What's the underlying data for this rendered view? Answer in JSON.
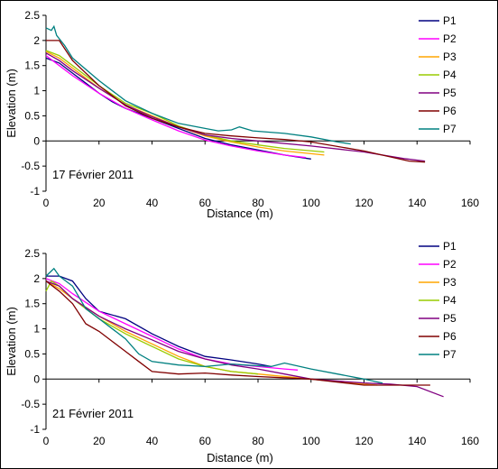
{
  "chart_data": [
    {
      "type": "line",
      "annotation": "17 Février 2011",
      "xlabel": "Distance (m)",
      "ylabel": "Elevation (m)",
      "xlim": [
        0,
        160
      ],
      "ylim": [
        -1,
        2.5
      ],
      "xticks": [
        "0",
        "20",
        "40",
        "60",
        "80",
        "100",
        "120",
        "140",
        "160"
      ],
      "yticks": [
        "2.5",
        "2",
        "1.5",
        "1",
        "0.5",
        "0",
        "-0.5",
        "-1"
      ],
      "legend_position": "right",
      "series": [
        {
          "name": "P1",
          "color": "#000080",
          "points": [
            [
              0,
              1.65
            ],
            [
              5,
              1.55
            ],
            [
              10,
              1.35
            ],
            [
              15,
              1.15
            ],
            [
              20,
              0.95
            ],
            [
              25,
              0.78
            ],
            [
              30,
              0.65
            ],
            [
              40,
              0.45
            ],
            [
              50,
              0.25
            ],
            [
              60,
              0.05
            ],
            [
              70,
              -0.08
            ],
            [
              80,
              -0.18
            ],
            [
              90,
              -0.28
            ],
            [
              100,
              -0.36
            ]
          ]
        },
        {
          "name": "P2",
          "color": "#ff00ff",
          "points": [
            [
              0,
              1.7
            ],
            [
              5,
              1.5
            ],
            [
              10,
              1.3
            ],
            [
              20,
              0.95
            ],
            [
              30,
              0.65
            ],
            [
              40,
              0.42
            ],
            [
              50,
              0.2
            ],
            [
              60,
              0.02
            ],
            [
              70,
              -0.1
            ],
            [
              80,
              -0.2
            ],
            [
              90,
              -0.28
            ],
            [
              98,
              -0.33
            ]
          ]
        },
        {
          "name": "P3",
          "color": "#ffa500",
          "points": [
            [
              0,
              1.78
            ],
            [
              5,
              1.65
            ],
            [
              10,
              1.45
            ],
            [
              20,
              1.05
            ],
            [
              30,
              0.72
            ],
            [
              40,
              0.5
            ],
            [
              50,
              0.28
            ],
            [
              60,
              0.1
            ],
            [
              70,
              -0.02
            ],
            [
              80,
              -0.12
            ],
            [
              90,
              -0.2
            ],
            [
              105,
              -0.28
            ]
          ]
        },
        {
          "name": "P4",
          "color": "#99cc00",
          "points": [
            [
              0,
              1.8
            ],
            [
              5,
              1.7
            ],
            [
              10,
              1.5
            ],
            [
              20,
              1.1
            ],
            [
              30,
              0.75
            ],
            [
              40,
              0.55
            ],
            [
              50,
              0.3
            ],
            [
              60,
              0.12
            ],
            [
              70,
              0.0
            ],
            [
              80,
              -0.08
            ],
            [
              90,
              -0.15
            ],
            [
              105,
              -0.22
            ]
          ]
        },
        {
          "name": "P5",
          "color": "#800080",
          "points": [
            [
              0,
              1.75
            ],
            [
              5,
              1.6
            ],
            [
              10,
              1.4
            ],
            [
              20,
              1.05
            ],
            [
              30,
              0.72
            ],
            [
              40,
              0.48
            ],
            [
              50,
              0.28
            ],
            [
              60,
              0.12
            ],
            [
              70,
              0.05
            ],
            [
              80,
              0.0
            ],
            [
              100,
              -0.1
            ],
            [
              120,
              -0.22
            ],
            [
              135,
              -0.35
            ],
            [
              143,
              -0.4
            ]
          ]
        },
        {
          "name": "P6",
          "color": "#800000",
          "points": [
            [
              0,
              2.0
            ],
            [
              5,
              2.0
            ],
            [
              10,
              1.6
            ],
            [
              20,
              1.1
            ],
            [
              30,
              0.7
            ],
            [
              40,
              0.45
            ],
            [
              50,
              0.28
            ],
            [
              60,
              0.15
            ],
            [
              70,
              0.1
            ],
            [
              80,
              0.06
            ],
            [
              90,
              0.03
            ],
            [
              100,
              -0.02
            ],
            [
              120,
              -0.2
            ],
            [
              137,
              -0.4
            ],
            [
              143,
              -0.42
            ]
          ]
        },
        {
          "name": "P7",
          "color": "#008080",
          "points": [
            [
              0,
              2.25
            ],
            [
              2,
              2.2
            ],
            [
              3,
              2.28
            ],
            [
              4,
              2.1
            ],
            [
              7,
              1.9
            ],
            [
              10,
              1.65
            ],
            [
              20,
              1.2
            ],
            [
              30,
              0.8
            ],
            [
              40,
              0.55
            ],
            [
              50,
              0.35
            ],
            [
              60,
              0.25
            ],
            [
              65,
              0.2
            ],
            [
              70,
              0.22
            ],
            [
              73,
              0.28
            ],
            [
              78,
              0.2
            ],
            [
              90,
              0.15
            ],
            [
              100,
              0.08
            ],
            [
              110,
              -0.02
            ],
            [
              115,
              -0.06
            ]
          ]
        }
      ]
    },
    {
      "type": "line",
      "annotation": "21 Février 2011",
      "xlabel": "Distance (m)",
      "ylabel": "Elevation (m)",
      "xlim": [
        0,
        160
      ],
      "ylim": [
        -1,
        2.5
      ],
      "xticks": [
        "0",
        "20",
        "40",
        "60",
        "80",
        "100",
        "120",
        "140",
        "160"
      ],
      "yticks": [
        "2.5",
        "2",
        "1.5",
        "1",
        "0.5",
        "0",
        "-0.5",
        "-1"
      ],
      "legend_position": "right",
      "series": [
        {
          "name": "P1",
          "color": "#000080",
          "points": [
            [
              0,
              2.05
            ],
            [
              5,
              2.05
            ],
            [
              10,
              1.95
            ],
            [
              15,
              1.6
            ],
            [
              20,
              1.35
            ],
            [
              30,
              1.2
            ],
            [
              40,
              0.9
            ],
            [
              50,
              0.65
            ],
            [
              60,
              0.45
            ],
            [
              70,
              0.38
            ],
            [
              80,
              0.3
            ],
            [
              85,
              0.25
            ]
          ]
        },
        {
          "name": "P2",
          "color": "#ff00ff",
          "points": [
            [
              0,
              2.0
            ],
            [
              5,
              1.9
            ],
            [
              10,
              1.7
            ],
            [
              20,
              1.35
            ],
            [
              30,
              1.1
            ],
            [
              40,
              0.85
            ],
            [
              50,
              0.6
            ],
            [
              60,
              0.4
            ],
            [
              70,
              0.3
            ],
            [
              80,
              0.25
            ],
            [
              90,
              0.2
            ],
            [
              95,
              0.18
            ]
          ]
        },
        {
          "name": "P3",
          "color": "#ffa500",
          "points": [
            [
              0,
              1.95
            ],
            [
              5,
              1.8
            ],
            [
              10,
              1.6
            ],
            [
              20,
              1.25
            ],
            [
              30,
              0.95
            ],
            [
              40,
              0.7
            ],
            [
              50,
              0.45
            ],
            [
              60,
              0.25
            ],
            [
              70,
              0.15
            ],
            [
              80,
              0.1
            ],
            [
              100,
              0.0
            ],
            [
              120,
              -0.1
            ],
            [
              125,
              -0.12
            ]
          ]
        },
        {
          "name": "P4",
          "color": "#99cc00",
          "points": [
            [
              0,
              1.75
            ],
            [
              2,
              1.95
            ],
            [
              5,
              1.85
            ],
            [
              10,
              1.6
            ],
            [
              20,
              1.2
            ],
            [
              30,
              0.9
            ],
            [
              40,
              0.65
            ],
            [
              50,
              0.4
            ],
            [
              60,
              0.25
            ],
            [
              70,
              0.15
            ],
            [
              80,
              0.1
            ]
          ]
        },
        {
          "name": "P5",
          "color": "#800080",
          "points": [
            [
              0,
              1.95
            ],
            [
              5,
              1.85
            ],
            [
              10,
              1.6
            ],
            [
              20,
              1.25
            ],
            [
              30,
              1.0
            ],
            [
              40,
              0.78
            ],
            [
              50,
              0.55
            ],
            [
              60,
              0.4
            ],
            [
              70,
              0.28
            ],
            [
              80,
              0.2
            ],
            [
              90,
              0.1
            ],
            [
              100,
              0.0
            ],
            [
              120,
              -0.08
            ],
            [
              130,
              -0.1
            ],
            [
              140,
              -0.15
            ],
            [
              150,
              -0.35
            ]
          ]
        },
        {
          "name": "P6",
          "color": "#800000",
          "points": [
            [
              0,
              1.95
            ],
            [
              5,
              1.75
            ],
            [
              10,
              1.5
            ],
            [
              15,
              1.1
            ],
            [
              20,
              0.95
            ],
            [
              25,
              0.75
            ],
            [
              30,
              0.55
            ],
            [
              35,
              0.35
            ],
            [
              40,
              0.15
            ],
            [
              50,
              0.1
            ],
            [
              60,
              0.12
            ],
            [
              70,
              0.08
            ],
            [
              80,
              0.05
            ],
            [
              100,
              0.0
            ],
            [
              120,
              -0.12
            ],
            [
              145,
              -0.12
            ]
          ]
        },
        {
          "name": "P7",
          "color": "#008080",
          "points": [
            [
              0,
              2.05
            ],
            [
              2,
              2.15
            ],
            [
              3,
              2.2
            ],
            [
              5,
              2.05
            ],
            [
              10,
              1.85
            ],
            [
              15,
              1.4
            ],
            [
              20,
              1.2
            ],
            [
              30,
              0.8
            ],
            [
              35,
              0.5
            ],
            [
              40,
              0.35
            ],
            [
              50,
              0.28
            ],
            [
              60,
              0.25
            ],
            [
              70,
              0.3
            ],
            [
              75,
              0.28
            ],
            [
              85,
              0.25
            ],
            [
              90,
              0.32
            ],
            [
              100,
              0.2
            ],
            [
              110,
              0.1
            ],
            [
              120,
              0.0
            ],
            [
              127,
              -0.08
            ]
          ]
        }
      ]
    }
  ]
}
